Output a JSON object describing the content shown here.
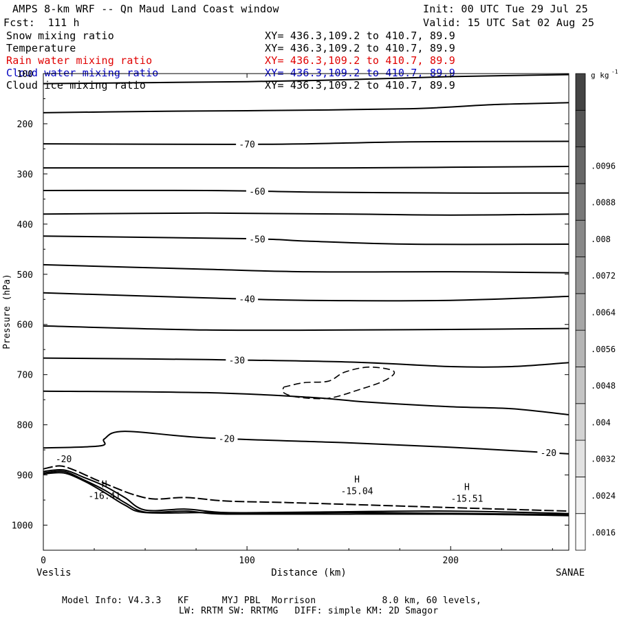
{
  "header": {
    "title": "AMPS 8-km WRF -- Qn Maud Land Coast window",
    "init": "Init: 00 UTC Tue 29 Jul 25",
    "fcst": "Fcst:  111 h",
    "valid": "Valid: 15 UTC Sat 02 Aug 25"
  },
  "fields": [
    {
      "name": "Snow mixing ratio",
      "xy": "XY= 436.3,109.2 to 410.7, 89.9",
      "color": "#000000"
    },
    {
      "name": "Temperature",
      "xy": "XY= 436.3,109.2 to 410.7, 89.9",
      "color": "#000000"
    },
    {
      "name": "Rain water mixing ratio",
      "xy": "XY= 436.3,109.2 to 410.7, 89.9",
      "color": "#e00000"
    },
    {
      "name": "Cloud water mixing ratio",
      "xy": "XY= 436.3,109.2 to 410.7, 89.9",
      "color": "#0000c0"
    },
    {
      "name": "Cloud ice mixing ratio",
      "xy": "XY= 436.3,109.2 to 410.7, 89.9",
      "color": "#000000"
    }
  ],
  "footer": {
    "line1": "Model Info: V4.3.3   KF      MYJ PBL  Morrison            8.0 km, 60 levels,",
    "line2": "LW: RRTM SW: RRTMG   DIFF: simple KM: 2D Smagor"
  },
  "chart_data": {
    "type": "contour",
    "ylabel": "Pressure (hPa)",
    "xlabel": "Distance (km)",
    "x_left_label": "Veslis",
    "x_right_label": "SANAE",
    "xlim": [
      0,
      258
    ],
    "ylim": [
      1050,
      100
    ],
    "xticks": [
      0,
      100,
      200
    ],
    "yticks": [
      100,
      200,
      300,
      400,
      500,
      600,
      700,
      800,
      900,
      1000
    ],
    "colorbar": {
      "unit": "g kg",
      "unit_exp": "-1",
      "levels": [
        ".0016",
        ".0024",
        ".0032",
        ".004",
        ".0048",
        ".0056",
        ".0064",
        ".0072",
        ".008",
        ".0088",
        ".0096"
      ],
      "colors": [
        "#fcfcfc",
        "#f0f0f0",
        "#e2e2e2",
        "#d3d3d3",
        "#c4c4c4",
        "#b5b5b5",
        "#a6a6a6",
        "#979797",
        "#888888",
        "#787878",
        "#676767",
        "#555555",
        "#444444"
      ]
    },
    "isotherms": [
      {
        "points": [
          [
            0,
            120
          ],
          [
            100,
            116
          ],
          [
            150,
            112
          ],
          [
            200,
            106
          ],
          [
            258,
            102
          ]
        ]
      },
      {
        "points": [
          [
            0,
            178
          ],
          [
            60,
            175
          ],
          [
            100,
            174
          ],
          [
            180,
            170
          ],
          [
            220,
            162
          ],
          [
            258,
            158
          ]
        ]
      },
      {
        "points": [
          [
            0,
            240
          ],
          [
            90,
            241
          ],
          [
            130,
            240
          ],
          [
            180,
            236
          ],
          [
            258,
            235
          ]
        ],
        "label": "-70",
        "label_x": 100
      },
      {
        "points": [
          [
            0,
            288
          ],
          [
            100,
            288
          ],
          [
            150,
            288
          ],
          [
            258,
            285
          ]
        ]
      },
      {
        "points": [
          [
            0,
            333
          ],
          [
            80,
            333
          ],
          [
            130,
            336
          ],
          [
            200,
            338
          ],
          [
            258,
            338
          ]
        ],
        "label": "-60",
        "label_x": 105
      },
      {
        "points": [
          [
            0,
            380
          ],
          [
            80,
            378
          ],
          [
            150,
            380
          ],
          [
            200,
            382
          ],
          [
            258,
            380
          ]
        ]
      },
      {
        "points": [
          [
            0,
            424
          ],
          [
            100,
            429
          ],
          [
            130,
            434
          ],
          [
            180,
            440
          ],
          [
            258,
            440
          ]
        ],
        "label": "-50",
        "label_x": 105
      },
      {
        "points": [
          [
            0,
            481
          ],
          [
            80,
            490
          ],
          [
            130,
            495
          ],
          [
            200,
            495
          ],
          [
            258,
            497
          ]
        ]
      },
      {
        "points": [
          [
            0,
            537
          ],
          [
            80,
            547
          ],
          [
            130,
            552
          ],
          [
            200,
            552
          ],
          [
            258,
            544
          ]
        ],
        "label": "-40",
        "label_x": 100
      },
      {
        "points": [
          [
            0,
            603
          ],
          [
            80,
            611
          ],
          [
            150,
            611
          ],
          [
            200,
            610
          ],
          [
            258,
            608
          ]
        ]
      },
      {
        "points": [
          [
            0,
            667
          ],
          [
            80,
            670
          ],
          [
            150,
            675
          ],
          [
            200,
            684
          ],
          [
            230,
            684
          ],
          [
            258,
            676
          ]
        ],
        "label": "-30",
        "label_x": 95
      },
      {
        "points": [
          [
            0,
            733
          ],
          [
            80,
            736
          ],
          [
            130,
            745
          ],
          [
            160,
            755
          ],
          [
            200,
            764
          ],
          [
            230,
            768
          ],
          [
            258,
            780
          ]
        ]
      },
      {
        "points": [
          [
            0,
            846
          ],
          [
            28,
            842
          ],
          [
            30,
            828
          ],
          [
            40,
            813
          ],
          [
            80,
            826
          ],
          [
            150,
            836
          ],
          [
            190,
            843
          ],
          [
            215,
            848
          ],
          [
            258,
            858
          ]
        ],
        "label": "-20",
        "label_x": 90,
        "label_end": "-20"
      }
    ],
    "ice_contour": {
      "points": [
        [
          118,
          725
        ],
        [
          128,
          716
        ],
        [
          140,
          713
        ],
        [
          148,
          695
        ],
        [
          160,
          685
        ],
        [
          172,
          693
        ],
        [
          168,
          711
        ],
        [
          155,
          730
        ],
        [
          140,
          747
        ],
        [
          125,
          745
        ],
        [
          118,
          736
        ],
        [
          118,
          725
        ]
      ],
      "style": "dashed"
    },
    "surface_lines": [
      {
        "points": [
          [
            0,
            888
          ],
          [
            8,
            882
          ],
          [
            15,
            890
          ],
          [
            25,
            908
          ],
          [
            35,
            925
          ],
          [
            45,
            940
          ],
          [
            55,
            948
          ],
          [
            70,
            945
          ],
          [
            90,
            952
          ],
          [
            120,
            955
          ],
          [
            160,
            960
          ],
          [
            200,
            965
          ],
          [
            258,
            972
          ]
        ],
        "dashed": true,
        "label": "-20",
        "label_x": 10
      },
      {
        "points": [
          [
            0,
            893
          ],
          [
            10,
            890
          ],
          [
            20,
            905
          ],
          [
            30,
            922
          ],
          [
            40,
            945
          ],
          [
            50,
            970
          ],
          [
            70,
            968
          ],
          [
            90,
            975
          ],
          [
            130,
            974
          ],
          [
            200,
            972
          ],
          [
            258,
            977
          ]
        ]
      },
      {
        "points": [
          [
            0,
            896
          ],
          [
            10,
            893
          ],
          [
            20,
            910
          ],
          [
            30,
            930
          ],
          [
            40,
            955
          ],
          [
            50,
            974
          ],
          [
            70,
            972
          ],
          [
            90,
            978
          ],
          [
            150,
            975
          ],
          [
            258,
            979
          ]
        ]
      },
      {
        "points": [
          [
            0,
            898
          ],
          [
            10,
            896
          ],
          [
            20,
            912
          ],
          [
            30,
            935
          ],
          [
            40,
            960
          ],
          [
            50,
            975
          ],
          [
            80,
            975
          ],
          [
            100,
            978
          ],
          [
            200,
            978
          ],
          [
            258,
            981
          ]
        ]
      }
    ],
    "highs": [
      {
        "x": 30,
        "p": 938,
        "value": "-16.41"
      },
      {
        "x": 154,
        "p": 929,
        "value": "-15.04"
      },
      {
        "x": 208,
        "p": 944,
        "value": "-15.51"
      }
    ]
  }
}
